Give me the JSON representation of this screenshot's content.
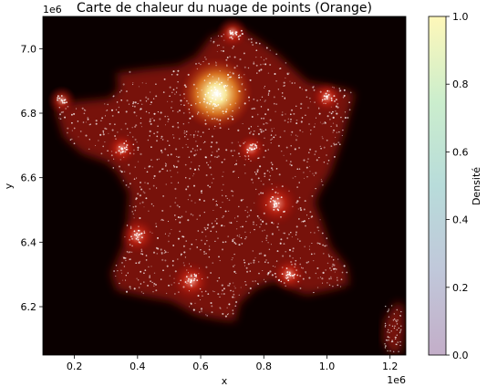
{
  "chart_data": {
    "type": "heatmap",
    "title": "Carte de chaleur du nuage de points (Orange)",
    "xlabel": "x",
    "ylabel": "y",
    "x_offset_label": "1e6",
    "y_offset_label": "1e6",
    "xlim": [
      0.1,
      1.25
    ],
    "ylim": [
      6.05,
      7.1
    ],
    "x_ticks": [
      0.2,
      0.4,
      0.6,
      0.8,
      1.0,
      1.2
    ],
    "x_tick_labels": [
      "0.2",
      "0.4",
      "0.6",
      "0.8",
      "1.0",
      "1.2"
    ],
    "y_ticks": [
      6.2,
      6.4,
      6.6,
      6.8,
      7.0
    ],
    "y_tick_labels": [
      "6.2",
      "6.4",
      "6.6",
      "6.8",
      "7.0"
    ],
    "grid": false,
    "colorbar": {
      "label": "Densité",
      "range": [
        0.0,
        1.0
      ],
      "ticks": [
        0.0,
        0.2,
        0.4,
        0.6,
        0.8,
        1.0
      ],
      "tick_labels": [
        "0.0",
        "0.2",
        "0.4",
        "0.6",
        "0.8",
        "1.0"
      ],
      "colors": [
        "#440154",
        "#3b528b",
        "#21918c",
        "#5ec962",
        "#fde725"
      ]
    },
    "hotspots": [
      {
        "x": 0.65,
        "y": 6.86,
        "intensity": 1.0
      },
      {
        "x": 0.84,
        "y": 6.52,
        "intensity": 0.55
      },
      {
        "x": 0.57,
        "y": 6.28,
        "intensity": 0.45
      },
      {
        "x": 0.4,
        "y": 6.42,
        "intensity": 0.4
      },
      {
        "x": 0.88,
        "y": 6.3,
        "intensity": 0.35
      },
      {
        "x": 0.35,
        "y": 6.69,
        "intensity": 0.3
      },
      {
        "x": 0.7,
        "y": 7.05,
        "intensity": 0.3
      },
      {
        "x": 1.0,
        "y": 6.85,
        "intensity": 0.3
      },
      {
        "x": 0.76,
        "y": 6.69,
        "intensity": 0.28
      },
      {
        "x": 0.16,
        "y": 6.84,
        "intensity": 0.25
      }
    ],
    "background_color": "#0a0000",
    "point_color": "#ffffff"
  }
}
